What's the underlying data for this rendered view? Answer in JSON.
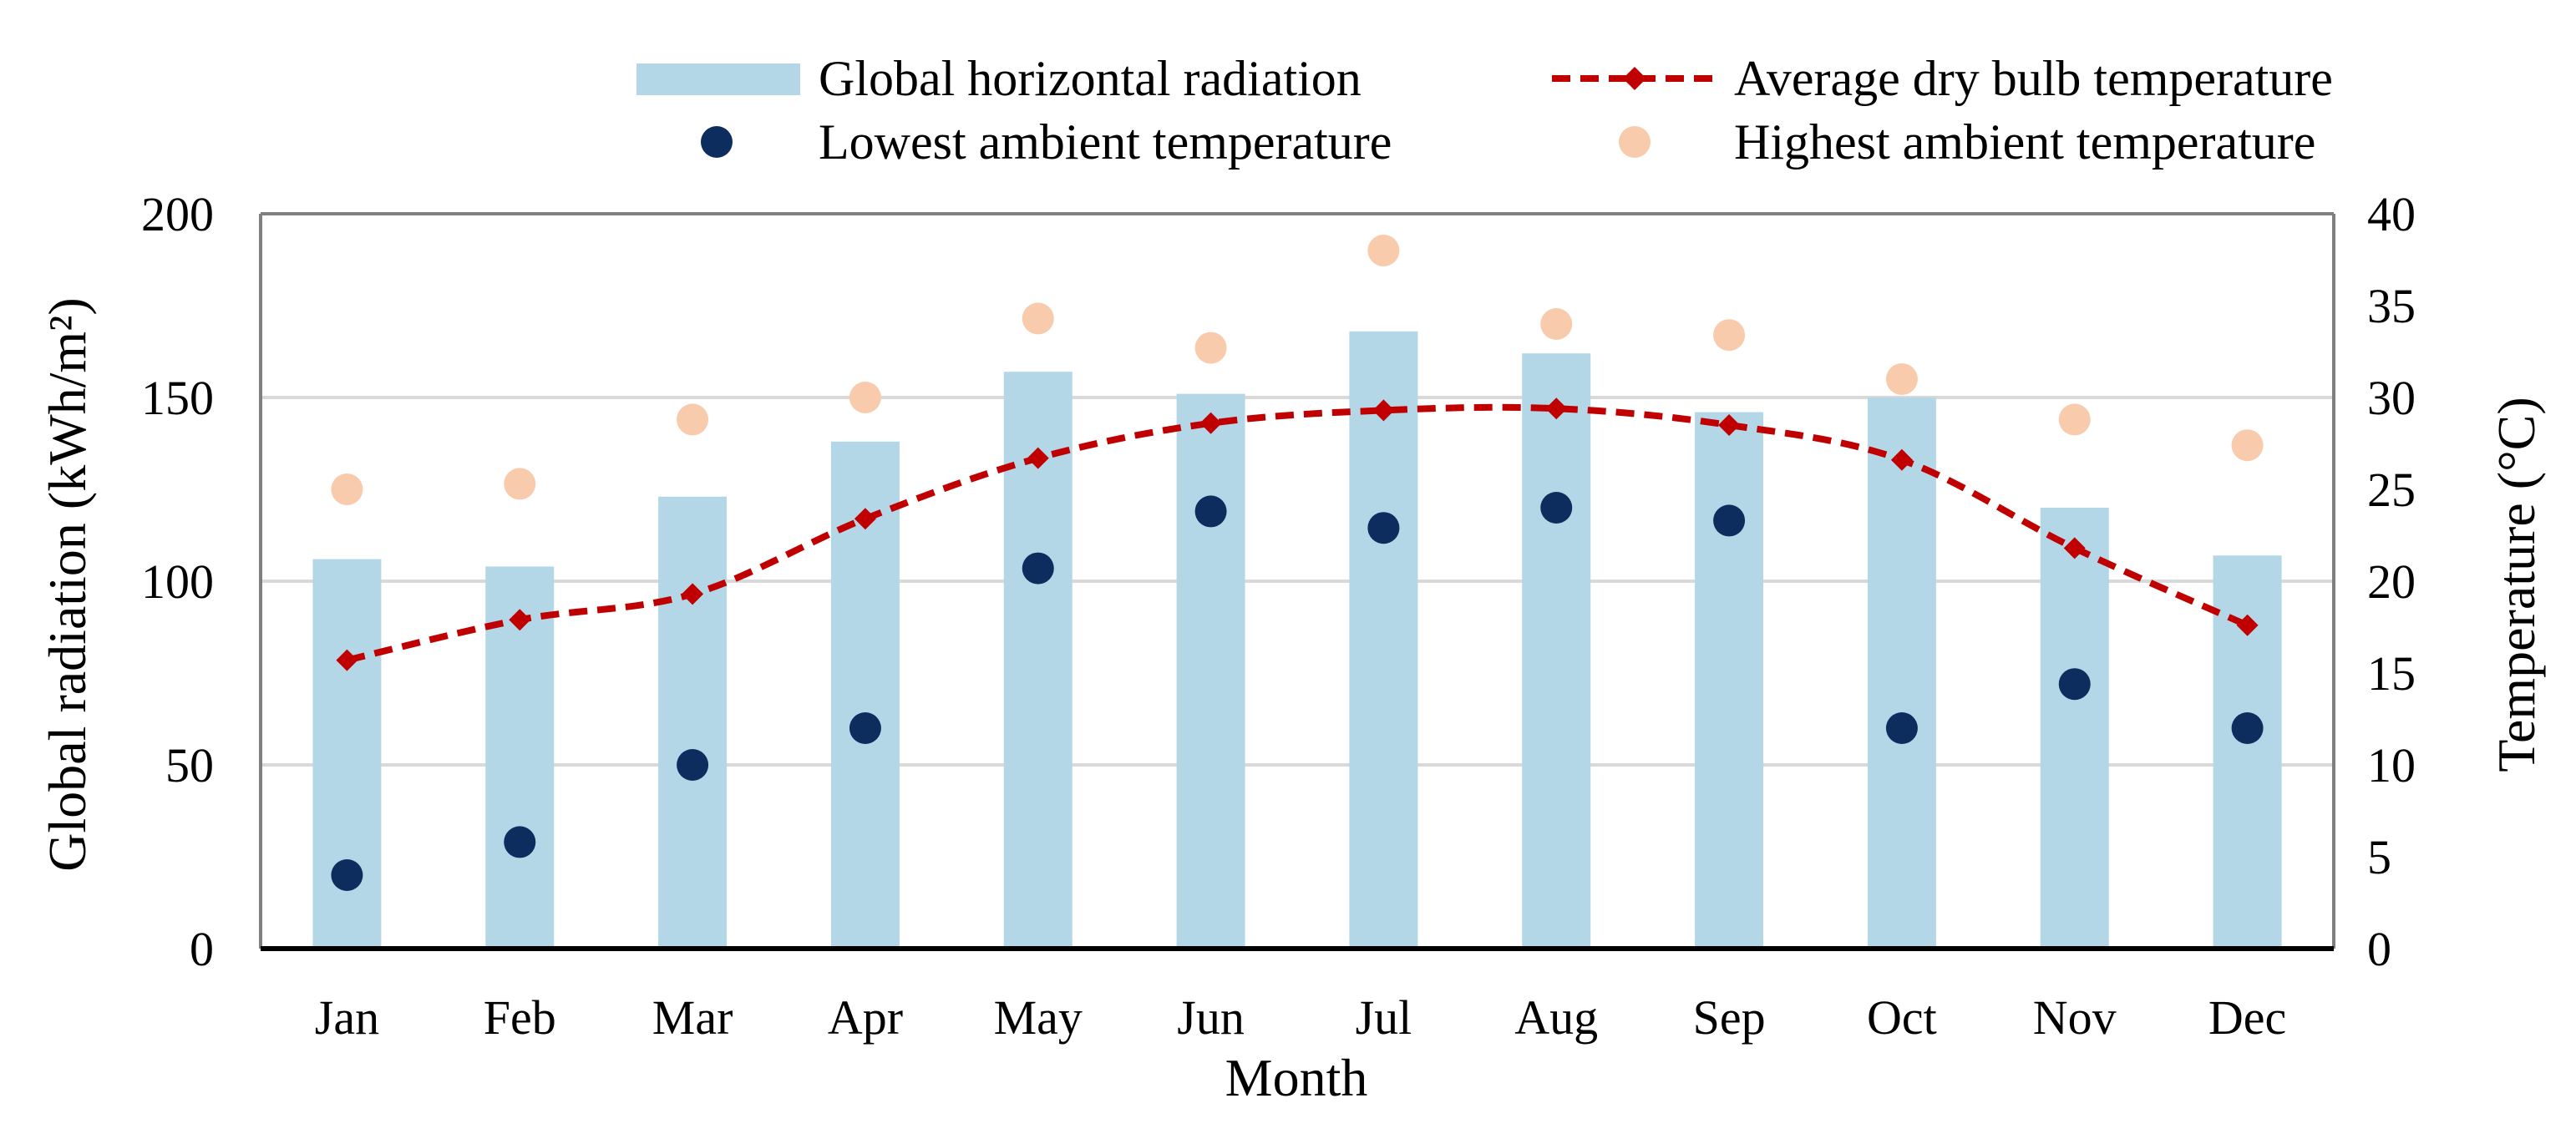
{
  "chart_data": {
    "type": "bar",
    "categories": [
      "Jan",
      "Feb",
      "Mar",
      "Apr",
      "May",
      "Jun",
      "Jul",
      "Aug",
      "Sep",
      "Oct",
      "Nov",
      "Dec"
    ],
    "xlabel": "Month",
    "ylabel": "Global radiation (kWh/m²)",
    "y2label": "Temperature (°C)",
    "ylim": [
      0,
      200
    ],
    "y2lim": [
      0,
      40
    ],
    "yticks": [
      0,
      50,
      100,
      150,
      200
    ],
    "y2ticks": [
      0,
      5,
      10,
      15,
      20,
      25,
      30,
      35,
      40
    ],
    "grid": true,
    "legend_position": "top",
    "series": [
      {
        "name": "Global horizontal radiation",
        "type": "bar",
        "axis": "left",
        "color": "#b4d7e8",
        "values": [
          106,
          104,
          123,
          138,
          157,
          151,
          168,
          162,
          146,
          150,
          120,
          107
        ]
      },
      {
        "name": "Average dry bulb temperature",
        "type": "line",
        "axis": "right",
        "color": "#c00000",
        "values": [
          15.7,
          17.9,
          19.3,
          23.4,
          26.7,
          28.6,
          29.3,
          29.4,
          28.5,
          26.6,
          21.8,
          17.6
        ]
      },
      {
        "name": "Lowest ambient temperature",
        "type": "scatter",
        "axis": "right",
        "color": "#0c2d5e",
        "values": [
          4.0,
          5.8,
          10.0,
          12.0,
          20.7,
          23.8,
          22.9,
          24.0,
          23.3,
          12.0,
          14.4,
          12.0
        ]
      },
      {
        "name": "Highest ambient temperature",
        "type": "scatter",
        "axis": "right",
        "color": "#f8cbad",
        "values": [
          25.0,
          25.3,
          28.8,
          30.0,
          34.3,
          32.7,
          38.0,
          34.0,
          33.4,
          31.0,
          28.8,
          27.4
        ]
      }
    ]
  }
}
